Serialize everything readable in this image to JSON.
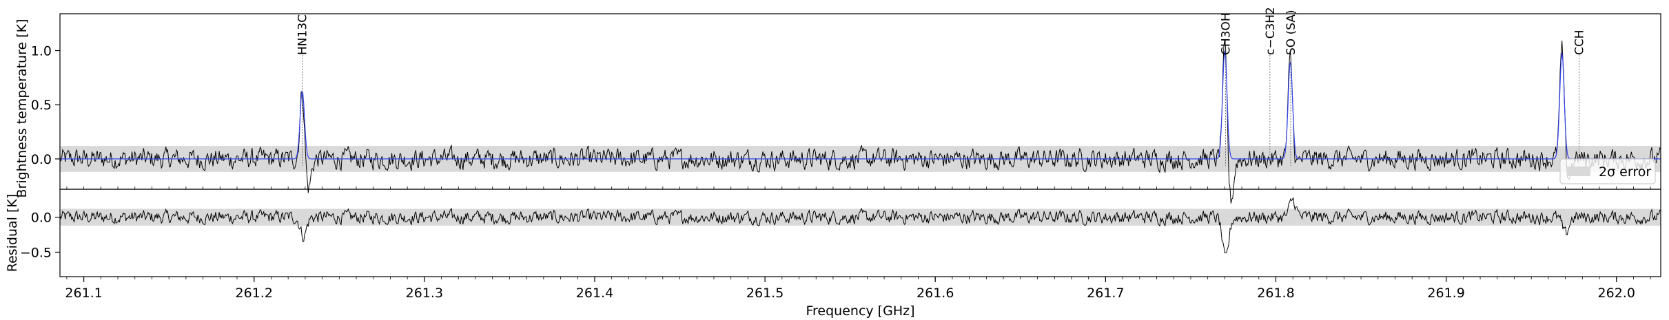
{
  "chart_data": [
    {
      "type": "line",
      "panel": "spectrum",
      "ylabel": "Brightness temperature [K]",
      "ylim": [
        -0.28,
        1.34
      ],
      "yticks": [
        0.0,
        0.5,
        1.0
      ],
      "ytick_labels": [
        "0.0",
        "0.5",
        "1.0"
      ],
      "xlim": [
        261.086,
        262.026
      ],
      "grid": false,
      "error_band": {
        "label": "2σ error",
        "low": -0.12,
        "high": 0.12,
        "color": "#d9d9d9"
      },
      "legend": {
        "placement": "bottom-right",
        "entries": [
          "2σ error"
        ]
      },
      "series": [
        {
          "role": "observed",
          "color": "#000000"
        },
        {
          "role": "model",
          "color": "#3344ee"
        }
      ],
      "peaks": [
        {
          "freq": 261.2283,
          "observed": 0.65,
          "model": 0.63,
          "dip": -0.28
        },
        {
          "freq": 261.77,
          "observed": 1.05,
          "model": 1.0,
          "dip": -0.4
        },
        {
          "freq": 261.8085,
          "observed": 0.92,
          "model": 0.9,
          "dip": -0.05
        },
        {
          "freq": 261.968,
          "observed": 1.02,
          "model": 0.98,
          "dip": -0.18
        }
      ],
      "line_markers": [
        {
          "label": "HN$^{13}$C",
          "text": "HN13C",
          "freq": 261.2283
        },
        {
          "label": "CH$_3$OH",
          "text": "CH3OH",
          "freq": 261.7705
        },
        {
          "label": "c-C$_3$H$_2$",
          "text": "c−C3H2",
          "freq": 261.7965
        },
        {
          "label": "SO (SA)",
          "text": "SO (SA)",
          "freq": 261.8087
        },
        {
          "label": "CCH",
          "text": "CCH",
          "freq": 261.978
        }
      ]
    },
    {
      "type": "line",
      "panel": "residual",
      "ylabel": "Residual [K]",
      "xlabel": "Frequency [GHz]",
      "ylim": [
        -0.85,
        0.4
      ],
      "yticks": [
        -0.5,
        0.0
      ],
      "ytick_labels": [
        "−0.5",
        "0.0"
      ],
      "xlim": [
        261.086,
        262.026
      ],
      "xticks": [
        261.1,
        261.2,
        261.3,
        261.4,
        261.5,
        261.6,
        261.7,
        261.8,
        261.9,
        262.0
      ],
      "xtick_labels": [
        "261.1",
        "261.2",
        "261.3",
        "261.4",
        "261.5",
        "261.6",
        "261.7",
        "261.8",
        "261.9",
        "262.0"
      ],
      "error_band": {
        "low": -0.12,
        "high": 0.12,
        "color": "#d9d9d9"
      },
      "features": [
        {
          "freq": 261.229,
          "value": -0.27
        },
        {
          "freq": 261.7705,
          "value": -0.62
        },
        {
          "freq": 261.81,
          "value": 0.25
        },
        {
          "freq": 261.97,
          "value": -0.25
        }
      ]
    }
  ]
}
